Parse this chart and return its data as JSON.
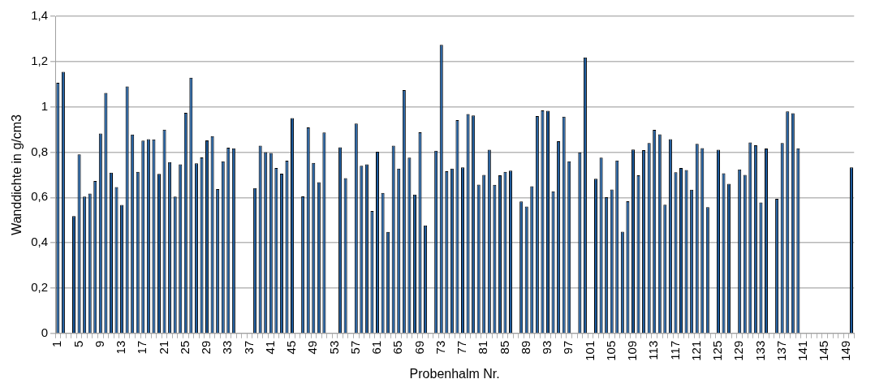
{
  "chart_data": {
    "type": "bar",
    "xlabel": "Probenhalm Nr.",
    "ylabel": "Wanddichte in g/cm3",
    "categories": [
      "1",
      null,
      null,
      null,
      "5",
      null,
      null,
      null,
      "9",
      null,
      null,
      null,
      "13",
      null,
      null,
      null,
      "17",
      null,
      null,
      null,
      "21",
      null,
      null,
      null,
      "25",
      null,
      null,
      null,
      "29",
      null,
      null,
      null,
      "33",
      null,
      null,
      null,
      "37",
      null,
      null,
      null,
      "41",
      null,
      null,
      null,
      "45",
      null,
      null,
      null,
      "49",
      null,
      null,
      null,
      "53",
      null,
      null,
      null,
      "57",
      null,
      null,
      null,
      "61",
      null,
      null,
      null,
      "65",
      null,
      null,
      null,
      "69",
      null,
      null,
      null,
      "73",
      null,
      null,
      null,
      "77",
      null,
      null,
      null,
      "81",
      null,
      null,
      null,
      "85",
      null,
      null,
      null,
      "89",
      null,
      null,
      null,
      "93",
      null,
      null,
      null,
      "97",
      null,
      null,
      null,
      "101",
      null,
      null,
      null,
      "105",
      null,
      null,
      null,
      "109",
      null,
      null,
      null,
      "113",
      null,
      null,
      null,
      "117",
      null,
      null,
      null,
      "121",
      null,
      null,
      null,
      "125",
      null,
      null,
      null,
      "129",
      null,
      null,
      null,
      "133",
      null,
      null,
      null,
      "137",
      null,
      null,
      null,
      "141",
      null,
      null,
      null,
      "145",
      null,
      null,
      null,
      "149",
      null
    ],
    "values": [
      1.106,
      1.155,
      null,
      0.518,
      0.79,
      0.604,
      0.617,
      0.673,
      0.882,
      1.061,
      0.709,
      0.646,
      0.567,
      1.09,
      0.878,
      0.713,
      0.851,
      0.857,
      0.856,
      0.704,
      0.899,
      0.756,
      0.604,
      0.746,
      0.974,
      1.129,
      0.751,
      0.777,
      0.852,
      0.871,
      0.637,
      0.76,
      0.82,
      0.817,
      null,
      null,
      null,
      0.641,
      0.829,
      0.8,
      0.796,
      0.73,
      0.705,
      0.762,
      0.95,
      null,
      0.605,
      0.909,
      0.752,
      0.667,
      0.887,
      null,
      null,
      0.821,
      0.685,
      null,
      0.926,
      0.74,
      0.746,
      0.54,
      0.802,
      0.62,
      0.448,
      0.829,
      0.727,
      1.074,
      0.776,
      0.613,
      0.888,
      0.477,
      null,
      0.806,
      1.274,
      0.716,
      0.727,
      0.941,
      0.733,
      0.968,
      0.962,
      0.657,
      0.7,
      0.811,
      0.656,
      0.698,
      0.713,
      0.718,
      null,
      0.582,
      0.56,
      0.649,
      0.959,
      0.984,
      0.983,
      0.627,
      0.848,
      0.957,
      0.76,
      null,
      0.799,
      1.218,
      null,
      0.683,
      0.776,
      0.601,
      0.635,
      0.763,
      0.449,
      0.583,
      0.812,
      0.698,
      0.809,
      0.84,
      0.898,
      0.879,
      0.568,
      0.857,
      0.711,
      0.73,
      0.721,
      0.634,
      0.837,
      0.818,
      0.557,
      null,
      0.811,
      0.707,
      0.66,
      null,
      0.724,
      0.7,
      0.843,
      0.83,
      0.578,
      0.816,
      null,
      0.594,
      0.84,
      0.98,
      0.972,
      0.817,
      null,
      null,
      null,
      null,
      null,
      null,
      null,
      null,
      null,
      0.733
    ],
    "color": "#1c5a9c",
    "ylim": [
      0,
      1.4
    ],
    "yticks": [
      0,
      {
        "value": 0.2,
        "label": "0,2"
      },
      {
        "value": 0.4,
        "label": "0,4"
      },
      {
        "value": 0.6,
        "label": "0,6"
      },
      {
        "value": 0.8,
        "label": "0,8"
      },
      1,
      {
        "value": 1.2,
        "label": "1,2"
      },
      {
        "value": 1.4,
        "label": "1,4"
      }
    ],
    "grid": "y",
    "legend": false
  }
}
